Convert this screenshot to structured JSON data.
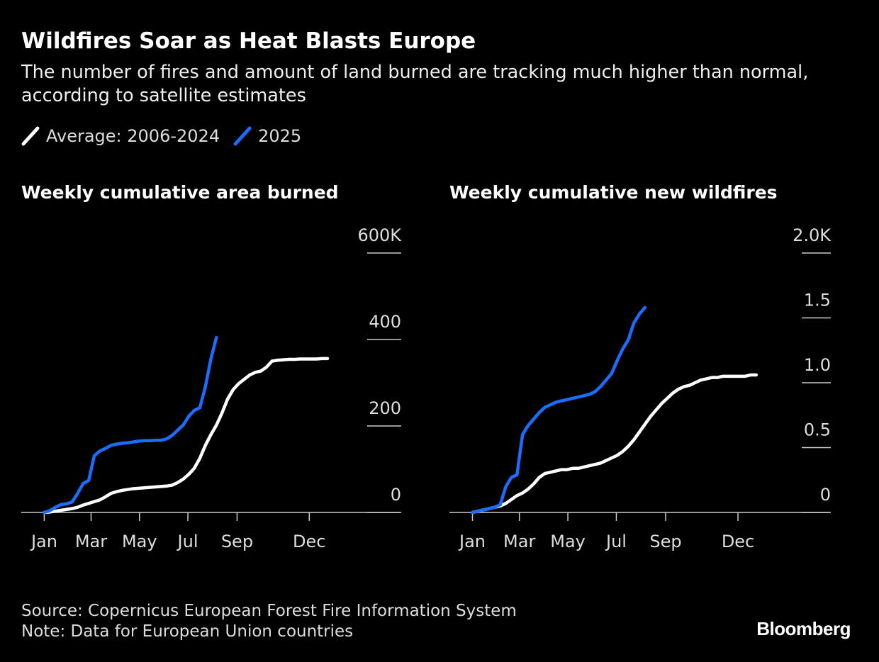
{
  "title": "Wildfires Soar as Heat Blasts Europe",
  "subtitle": "The number of fires and amount of land burned are tracking much higher than normal, according to satellite estimates",
  "source": "Source: Copernicus European Forest Fire Information System",
  "note": "Note: Data for European Union countries",
  "brand": "Bloomberg",
  "chart_data": [
    {
      "type": "line",
      "title": "Weekly cumulative area burned",
      "x": [
        1,
        8,
        15,
        22,
        29,
        36,
        43,
        50,
        57,
        64,
        71,
        78,
        85,
        92,
        99,
        106,
        113,
        120,
        127,
        134,
        141,
        148,
        155,
        162,
        169,
        176,
        183,
        190,
        197,
        204,
        211,
        218,
        225,
        232,
        239,
        246,
        253,
        260,
        267,
        274,
        281,
        288,
        295,
        302,
        309,
        316,
        323,
        330,
        337,
        344,
        351,
        358
      ],
      "xlim": [
        -28,
        450
      ],
      "xticks": [
        {
          "value": 1,
          "label": "Jan"
        },
        {
          "value": 60,
          "label": "Mar"
        },
        {
          "value": 121,
          "label": "May"
        },
        {
          "value": 182,
          "label": "Jul"
        },
        {
          "value": 244,
          "label": "Sep"
        },
        {
          "value": 335,
          "label": "Dec"
        }
      ],
      "ylim": [
        0,
        600
      ],
      "yticks": [
        0,
        200,
        400,
        {
          "value": 600,
          "label": "600K"
        }
      ],
      "series": [
        {
          "name": "Average: 2006-2024",
          "color": "#ffffff",
          "values": [
            0,
            1,
            3,
            5,
            7,
            9,
            12,
            17,
            21,
            25,
            29,
            36,
            44,
            48,
            51,
            53,
            55,
            56,
            57,
            58,
            59,
            60,
            61,
            63,
            69,
            77,
            88,
            102,
            125,
            155,
            180,
            202,
            230,
            262,
            284,
            298,
            308,
            318,
            324,
            327,
            336,
            350,
            352,
            353,
            354,
            354,
            355,
            355,
            355,
            355,
            356,
            356
          ]
        },
        {
          "name": "2025",
          "color": "#1a6dff",
          "values": [
            0,
            4,
            12,
            18,
            20,
            24,
            44,
            67,
            74,
            131,
            142,
            148,
            155,
            158,
            160,
            161,
            163,
            165,
            166,
            166,
            167,
            167,
            170,
            178,
            190,
            202,
            222,
            236,
            242,
            290,
            355,
            405,
            null,
            null,
            null,
            null,
            null,
            null,
            null,
            null,
            null,
            null,
            null,
            null,
            null,
            null,
            null,
            null,
            null,
            null,
            null,
            null
          ]
        }
      ]
    },
    {
      "type": "line",
      "title": "Weekly cumulative new wildfires",
      "x": [
        1,
        8,
        15,
        22,
        29,
        36,
        43,
        50,
        57,
        64,
        71,
        78,
        85,
        92,
        99,
        106,
        113,
        120,
        127,
        134,
        141,
        148,
        155,
        162,
        169,
        176,
        183,
        190,
        197,
        204,
        211,
        218,
        225,
        232,
        239,
        246,
        253,
        260,
        267,
        274,
        281,
        288,
        295,
        302,
        309,
        316,
        323,
        330,
        337,
        344,
        351,
        358
      ],
      "xlim": [
        -28,
        450
      ],
      "xticks": [
        {
          "value": 1,
          "label": "Jan"
        },
        {
          "value": 60,
          "label": "Mar"
        },
        {
          "value": 121,
          "label": "May"
        },
        {
          "value": 182,
          "label": "Jul"
        },
        {
          "value": 244,
          "label": "Sep"
        },
        {
          "value": 335,
          "label": "Dec"
        }
      ],
      "ylim": [
        0,
        2
      ],
      "yticks": [
        0,
        0.5,
        {
          "value": 1,
          "label": "1.0"
        },
        1.5,
        {
          "value": 2,
          "label": "2.0K"
        }
      ],
      "series": [
        {
          "name": "Average: 2006-2024",
          "color": "#ffffff",
          "values": [
            0,
            0.01,
            0.02,
            0.03,
            0.04,
            0.05,
            0.07,
            0.1,
            0.13,
            0.15,
            0.18,
            0.22,
            0.27,
            0.3,
            0.31,
            0.32,
            0.33,
            0.33,
            0.34,
            0.34,
            0.35,
            0.36,
            0.37,
            0.38,
            0.4,
            0.42,
            0.44,
            0.47,
            0.51,
            0.56,
            0.62,
            0.68,
            0.74,
            0.79,
            0.84,
            0.88,
            0.92,
            0.95,
            0.97,
            0.98,
            1.0,
            1.02,
            1.03,
            1.04,
            1.04,
            1.05,
            1.05,
            1.05,
            1.05,
            1.05,
            1.06,
            1.06
          ]
        },
        {
          "name": "2025",
          "color": "#1a6dff",
          "values": [
            0,
            0.01,
            0.02,
            0.03,
            0.04,
            0.06,
            0.2,
            0.27,
            0.29,
            0.6,
            0.67,
            0.72,
            0.77,
            0.81,
            0.83,
            0.85,
            0.86,
            0.87,
            0.88,
            0.89,
            0.9,
            0.91,
            0.93,
            0.97,
            1.02,
            1.07,
            1.17,
            1.26,
            1.33,
            1.46,
            1.53,
            1.58,
            null,
            null,
            null,
            null,
            null,
            null,
            null,
            null,
            null,
            null,
            null,
            null,
            null,
            null,
            null,
            null,
            null,
            null,
            null,
            null
          ]
        }
      ]
    }
  ]
}
